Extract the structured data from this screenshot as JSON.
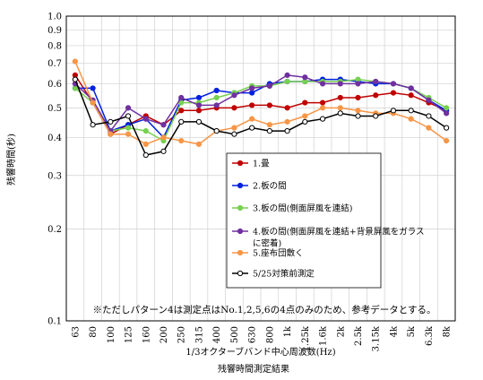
{
  "chart_data": {
    "type": "line",
    "x_scale": "category",
    "y_scale": "log",
    "ylim": [
      0.1,
      1.0
    ],
    "ytick_labels": [
      "1.0",
      "0.9",
      "0.8",
      "0.7",
      "0.6",
      "0.5",
      "0.4",
      "0.3",
      "0.2",
      "0.1"
    ],
    "ytick_values": [
      1.0,
      0.9,
      0.8,
      0.7,
      0.6,
      0.5,
      0.4,
      0.3,
      0.2,
      0.1
    ],
    "categories": [
      "63",
      "80",
      "100",
      "125",
      "160",
      "200",
      "250",
      "315",
      "400",
      "500",
      "630",
      "800",
      "1k",
      "1.25k",
      "1.6k",
      "2k",
      "2.5k",
      "3.15k",
      "4k",
      "5k",
      "6.3k",
      "8k"
    ],
    "xlabel": "1/3オクターブバンド中心周波数(Hz)",
    "ylabel": "残響時間(秒)",
    "caption": "残響時間測定結果",
    "note": "※ただしパターン4は測定点はNo.1,2,5,6の4点のみのため、参考データとする。",
    "grid": true,
    "legend_position": "center-right",
    "series": [
      {
        "name": "1.畳",
        "color": "#c00000",
        "values": [
          0.64,
          0.52,
          0.41,
          0.44,
          0.47,
          0.44,
          0.49,
          0.49,
          0.5,
          0.5,
          0.51,
          0.51,
          0.5,
          0.52,
          0.52,
          0.54,
          0.54,
          0.55,
          0.56,
          0.55,
          0.52,
          0.49
        ]
      },
      {
        "name": "2.板の間",
        "color": "#0020e0",
        "values": [
          0.58,
          0.58,
          0.42,
          0.44,
          0.46,
          0.4,
          0.53,
          0.54,
          0.57,
          0.56,
          0.56,
          0.6,
          0.61,
          0.61,
          0.62,
          0.62,
          0.61,
          0.6,
          0.6,
          0.58,
          0.53,
          0.49
        ]
      },
      {
        "name": "3.板の間(側面屏風を連結)",
        "color": "#77d050",
        "values": [
          0.58,
          0.52,
          0.42,
          0.43,
          0.42,
          0.39,
          0.52,
          0.52,
          0.54,
          0.56,
          0.59,
          0.59,
          0.61,
          0.61,
          0.61,
          0.61,
          0.62,
          0.61,
          0.6,
          0.58,
          0.54,
          0.5
        ]
      },
      {
        "name": "4.板の間(側面屏風を連結+背景屏風をガラスに密着)",
        "color": "#7030a0",
        "values": [
          0.6,
          0.53,
          0.42,
          0.5,
          0.46,
          0.44,
          0.54,
          0.51,
          0.51,
          0.55,
          0.58,
          0.59,
          0.64,
          0.63,
          0.6,
          0.6,
          0.6,
          0.61,
          0.6,
          0.58,
          0.53,
          0.48
        ]
      },
      {
        "name": "5.座布団敷く",
        "color": "#f79646",
        "values": [
          0.71,
          0.52,
          0.41,
          0.41,
          0.38,
          0.4,
          0.39,
          0.38,
          0.42,
          0.43,
          0.46,
          0.44,
          0.45,
          0.47,
          0.5,
          0.5,
          0.49,
          0.48,
          0.48,
          0.46,
          0.43,
          0.39
        ]
      },
      {
        "name": "5/25対策前測定",
        "color": "#000000",
        "values": [
          0.62,
          0.44,
          0.45,
          0.47,
          0.35,
          0.36,
          0.45,
          0.45,
          0.42,
          0.41,
          0.43,
          0.42,
          0.42,
          0.45,
          0.46,
          0.48,
          0.47,
          0.47,
          0.49,
          0.49,
          0.47,
          0.43
        ]
      }
    ]
  }
}
